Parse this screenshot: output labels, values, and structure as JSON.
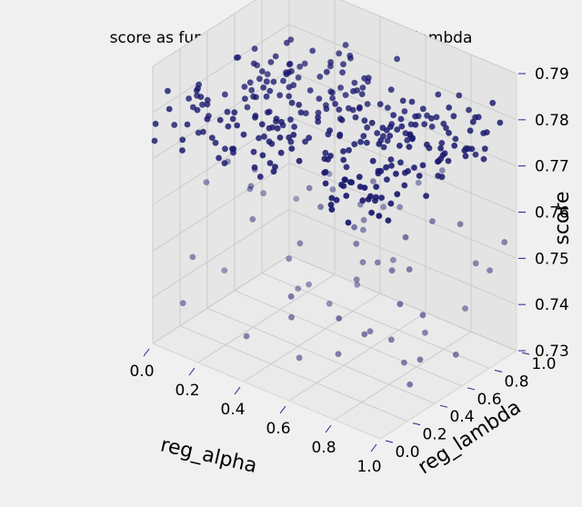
{
  "chart_data": {
    "type": "scatter",
    "title": "score as function of reg_alpha and reg_lambda",
    "xlabel": "reg_alpha",
    "ylabel": "reg_lambda",
    "zlabel": "score",
    "xlim": [
      0.0,
      1.0
    ],
    "ylim": [
      0.0,
      1.0
    ],
    "zlim": [
      0.73,
      0.79
    ],
    "xticks": [
      "0.0",
      "0.2",
      "0.4",
      "0.6",
      "0.8",
      "1.0"
    ],
    "yticks": [
      "0.0",
      "0.2",
      "0.4",
      "0.6",
      "0.8",
      "1.0"
    ],
    "zticks": [
      "0.73",
      "0.74",
      "0.75",
      "0.76",
      "0.77",
      "0.78",
      "0.79"
    ],
    "grid": true,
    "marker_color": "#1a1a6e",
    "points_note_count": 400
  }
}
